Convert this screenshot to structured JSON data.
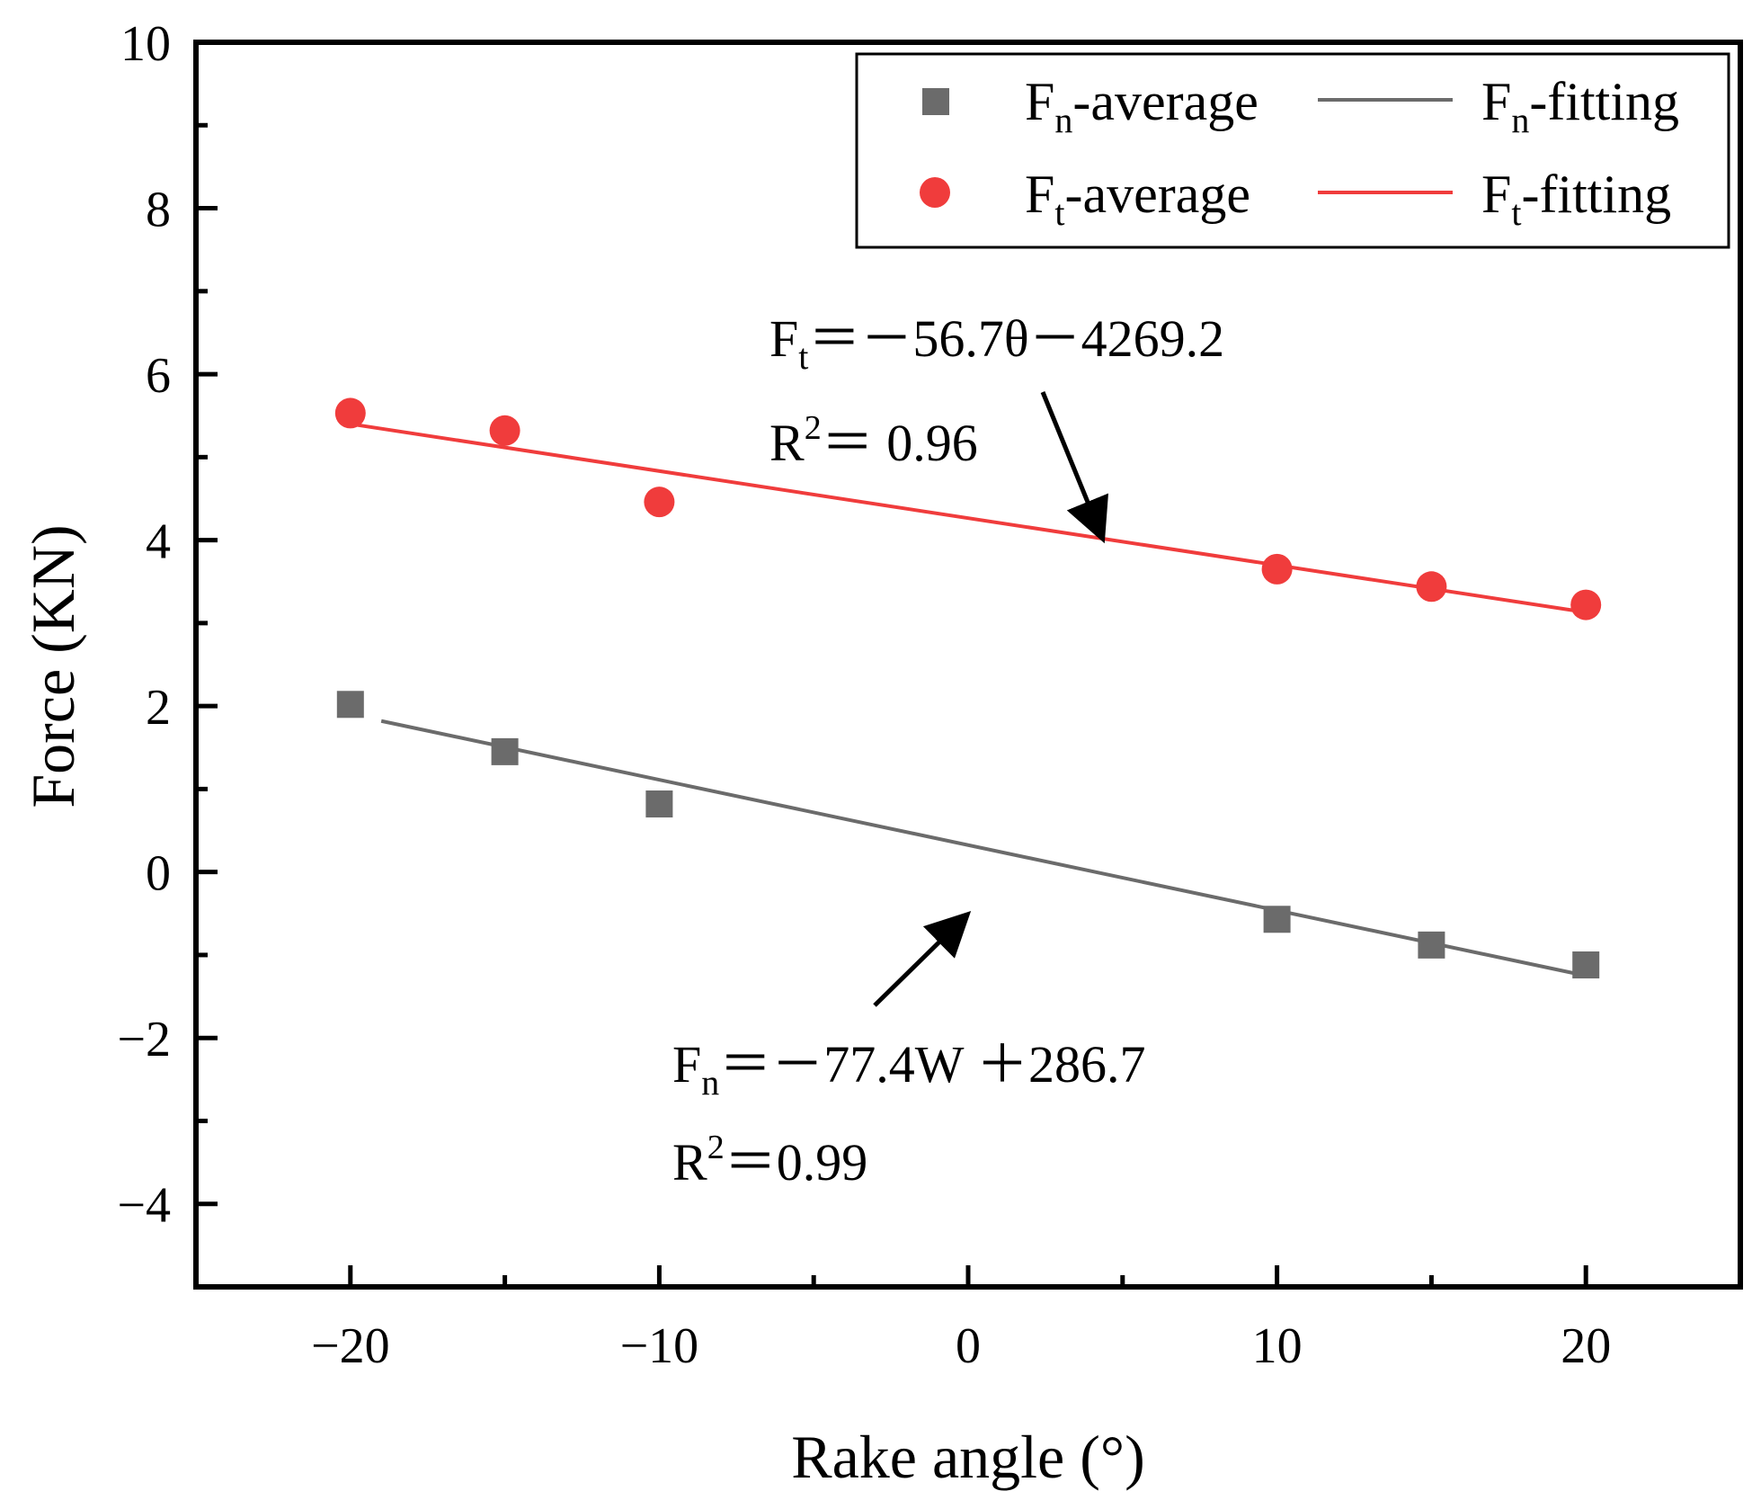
{
  "chart_data": {
    "type": "scatter",
    "title": "",
    "xlabel": "Rake angle (°)",
    "ylabel": "Force (KN)",
    "xlim": [
      -25,
      25
    ],
    "ylim": [
      -5,
      10
    ],
    "xticks": [
      -20,
      -10,
      0,
      10,
      20
    ],
    "xminor": [
      -15,
      -5,
      5,
      15
    ],
    "yticks": [
      -4,
      -2,
      0,
      2,
      4,
      6,
      8,
      10
    ],
    "yminor": [
      -5,
      -3,
      -1,
      1,
      3,
      5,
      7,
      9
    ],
    "xtick_labels": [
      "−20",
      "−10",
      "0",
      "10",
      "20"
    ],
    "ytick_labels": [
      "−4",
      "−2",
      "0",
      "2",
      "4",
      "6",
      "8",
      "10"
    ],
    "series": [
      {
        "name": "Fn-average",
        "marker": "square",
        "color": "#6b6b6b",
        "x": [
          -20,
          -15,
          -10,
          10,
          15,
          20
        ],
        "y": [
          2.02,
          1.45,
          0.82,
          -0.57,
          -0.88,
          -1.12
        ]
      },
      {
        "name": "Ft-average",
        "marker": "circle",
        "color": "#f03c3c",
        "x": [
          -20,
          -15,
          -10,
          10,
          15,
          20
        ],
        "y": [
          5.53,
          5.32,
          4.46,
          3.65,
          3.44,
          3.22
        ]
      }
    ],
    "fits": [
      {
        "name": "Fn-fitting",
        "color": "#6b6b6b",
        "x": [
          -19,
          20
        ],
        "y": [
          1.82,
          -1.25
        ]
      },
      {
        "name": "Ft-fitting",
        "color": "#f03c3c",
        "x": [
          -20,
          20
        ],
        "y": [
          5.4,
          3.13
        ]
      }
    ],
    "legend": {
      "position": "top-right",
      "entries": [
        {
          "kind": "square",
          "base": "F",
          "sub": "n",
          "rest": "-average",
          "color": "#6b6b6b"
        },
        {
          "kind": "line",
          "base": "F",
          "sub": "n",
          "rest": "-fitting",
          "color": "#6b6b6b"
        },
        {
          "kind": "circle",
          "base": "F",
          "sub": "t",
          "rest": "-average",
          "color": "#f03c3c"
        },
        {
          "kind": "line",
          "base": "F",
          "sub": "t",
          "rest": "-fitting",
          "color": "#f03c3c"
        }
      ]
    },
    "annotations": {
      "ft_equation": {
        "base": "F",
        "sub": "t",
        "rest": "＝－56.7θ－4269.2"
      },
      "ft_r2": {
        "base": "R",
        "sup": "2",
        "rest": "＝ 0.96"
      },
      "fn_equation": {
        "base": "F",
        "sub": "n",
        "rest": "＝－77.4W ＋286.7"
      },
      "fn_r2": {
        "base": "R",
        "sup": "2",
        "rest": "＝0.99"
      }
    }
  }
}
